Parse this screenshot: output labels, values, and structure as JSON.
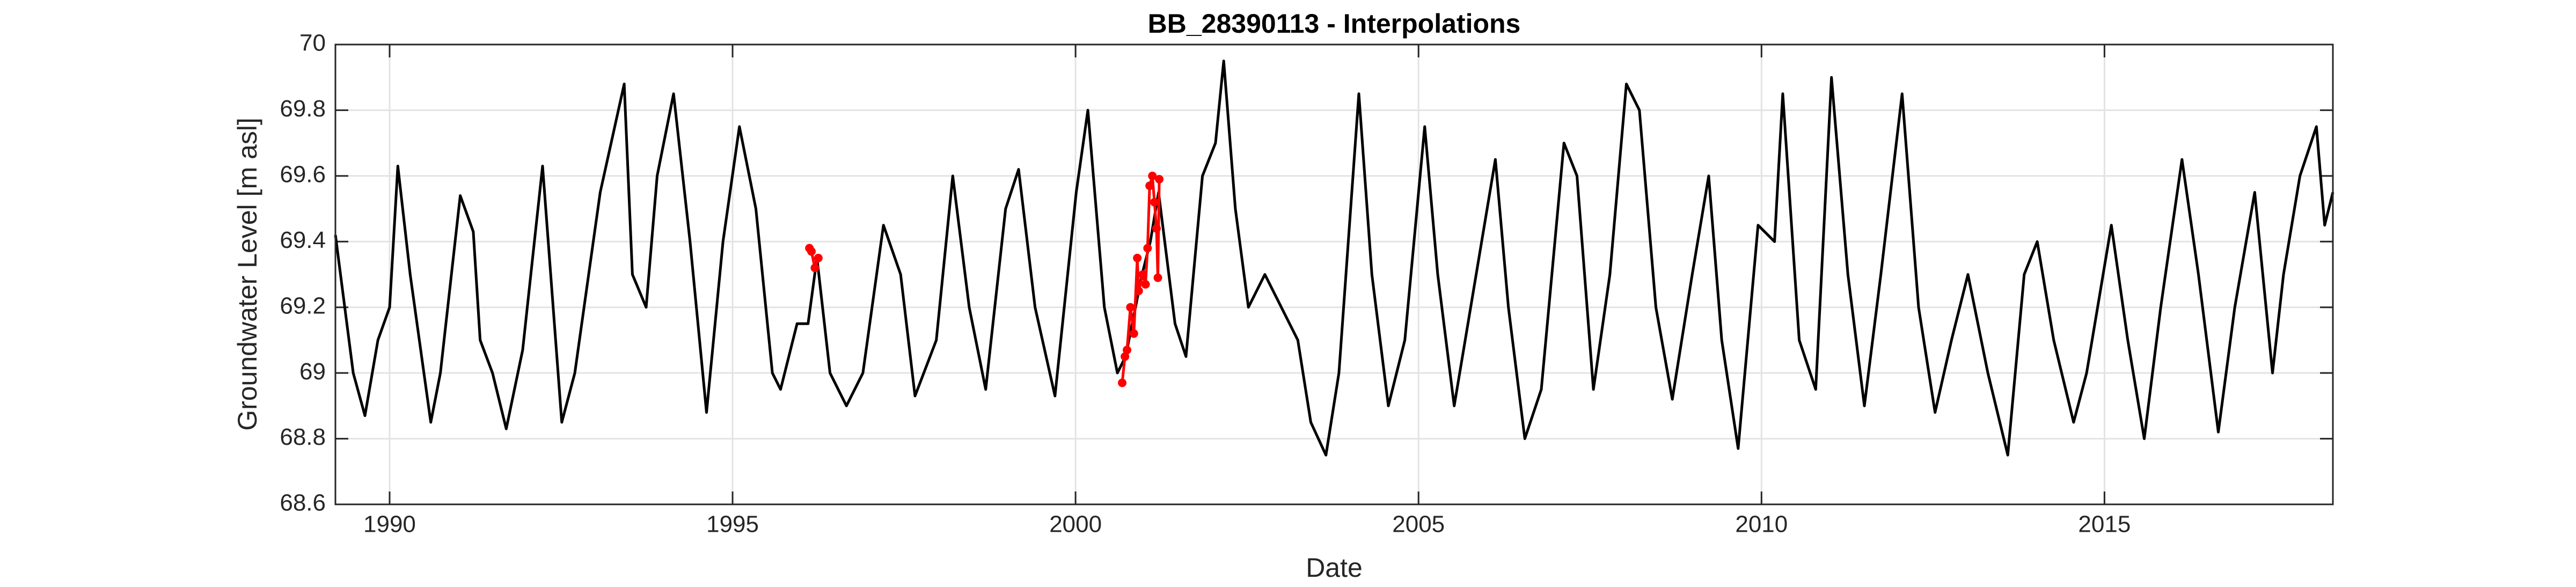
{
  "chart_data": {
    "type": "line",
    "title": "BB_28390113 - Interpolations",
    "x_label": "Date",
    "y_label": "Groundwater Level [m asl]",
    "xlim": [
      1989.21,
      2018.33
    ],
    "xticks": [
      1990,
      1995,
      2000,
      2005,
      2010,
      2015
    ],
    "ylim": [
      68.6,
      70
    ],
    "yticks": [
      68.6,
      68.8,
      69,
      69.2,
      69.4,
      69.6,
      69.8,
      70
    ],
    "grid": true,
    "series": [
      {
        "color": "#000000",
        "markers": false,
        "x": [
          1989.21,
          1989.47,
          1989.64,
          1989.83,
          1990,
          1990.12,
          1990.3,
          1990.6,
          1990.74,
          1991.03,
          1991.22,
          1991.32,
          1991.5,
          1991.7,
          1991.94,
          1992.23,
          1992.51,
          1992.7,
          1993.07,
          1993.42,
          1993.54,
          1993.74,
          1993.9,
          1994.14,
          1994.38,
          1994.62,
          1994.86,
          1995.1,
          1995.34,
          1995.58,
          1995.7,
          1995.94,
          1996.1,
          1996.23,
          1996.42,
          1996.66,
          1996.9,
          1997.2,
          1997.45,
          1997.66,
          1997.97,
          1998.21,
          1998.45,
          1998.69,
          1998.98,
          1999.17,
          1999.41,
          1999.7,
          2000.01,
          2000.18,
          2000.42,
          2000.61,
          2000.73,
          2000.97,
          2001.09,
          2001.21,
          2001.45,
          2001.61,
          2001.85,
          2002.04,
          2002.16,
          2002.33,
          2002.52,
          2002.76,
          2003.24,
          2003.43,
          2003.65,
          2003.84,
          2004.13,
          2004.32,
          2004.56,
          2004.8,
          2005.09,
          2005.28,
          2005.52,
          2005.76,
          2006.12,
          2006.31,
          2006.55,
          2006.79,
          2007.12,
          2007.31,
          2007.55,
          2007.79,
          2008.03,
          2008.22,
          2008.46,
          2008.7,
          2008.99,
          2009.23,
          2009.42,
          2009.66,
          2009.95,
          2010.19,
          2010.31,
          2010.55,
          2010.79,
          2011.02,
          2011.26,
          2011.5,
          2011.74,
          2012.05,
          2012.29,
          2012.53,
          2012.77,
          2013.01,
          2013.3,
          2013.59,
          2013.83,
          2014.02,
          2014.26,
          2014.55,
          2014.74,
          2015.1,
          2015.34,
          2015.58,
          2015.82,
          2016.13,
          2016.37,
          2016.66,
          2016.9,
          2017.19,
          2017.45,
          2017.61,
          2017.85,
          2018.09,
          2018.21,
          2018.33
        ],
        "values": [
          69.42,
          69.0,
          68.87,
          69.1,
          69.2,
          69.63,
          69.3,
          68.85,
          69.0,
          69.54,
          69.43,
          69.1,
          69.0,
          68.83,
          69.07,
          69.63,
          68.85,
          69.0,
          69.55,
          69.88,
          69.3,
          69.2,
          69.6,
          69.85,
          69.4,
          68.88,
          69.4,
          69.75,
          69.5,
          69.0,
          68.95,
          69.15,
          69.15,
          69.35,
          69.0,
          68.9,
          69.0,
          69.45,
          69.3,
          68.93,
          69.1,
          69.6,
          69.2,
          68.95,
          69.5,
          69.62,
          69.2,
          68.93,
          69.55,
          69.8,
          69.2,
          69.0,
          69.05,
          69.3,
          69.4,
          69.55,
          69.15,
          69.05,
          69.6,
          69.7,
          69.95,
          69.5,
          69.2,
          69.3,
          69.1,
          68.85,
          68.75,
          69.0,
          69.85,
          69.3,
          68.9,
          69.1,
          69.75,
          69.3,
          68.9,
          69.2,
          69.65,
          69.2,
          68.8,
          68.95,
          69.7,
          69.6,
          68.95,
          69.3,
          69.88,
          69.8,
          69.2,
          68.92,
          69.3,
          69.6,
          69.1,
          68.77,
          69.45,
          69.4,
          69.85,
          69.1,
          68.95,
          69.9,
          69.3,
          68.9,
          69.3,
          69.85,
          69.2,
          68.88,
          69.1,
          69.3,
          69.0,
          68.75,
          69.3,
          69.4,
          69.1,
          68.85,
          69.0,
          69.45,
          69.1,
          68.8,
          69.2,
          69.65,
          69.3,
          68.82,
          69.2,
          69.55,
          69.0,
          69.3,
          69.6,
          69.75,
          69.45,
          69.55
        ]
      },
      {
        "color": "#ff0000",
        "markers": true,
        "x": [
          1996.12,
          1996.15,
          1996.2,
          1996.25,
          null,
          2000.68,
          2000.72,
          2000.75,
          2000.8,
          2000.85,
          2000.9,
          2000.92,
          2000.98,
          2001.02,
          2001.05,
          2001.08,
          2001.12,
          2001.15,
          2001.18,
          2001.2,
          2001.22
        ],
        "values": [
          69.38,
          69.37,
          69.32,
          69.35,
          null,
          68.97,
          69.05,
          69.07,
          69.2,
          69.12,
          69.35,
          69.25,
          69.3,
          69.27,
          69.38,
          69.57,
          69.6,
          69.52,
          69.44,
          69.29,
          69.59
        ]
      }
    ]
  }
}
